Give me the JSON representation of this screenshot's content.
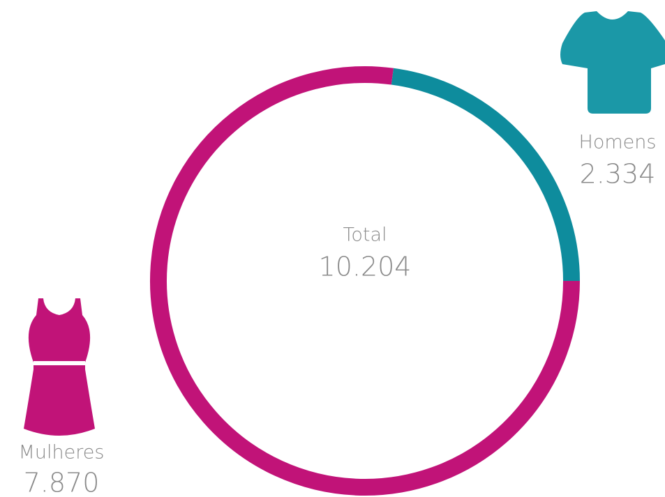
{
  "chart_data": {
    "type": "donut",
    "categories": [
      "Homens",
      "Mulheres"
    ],
    "values": [
      2334,
      7870
    ],
    "value_labels": [
      "2.334",
      "7.870"
    ],
    "colors": [
      "#0e8c9d",
      "#c11378"
    ],
    "center_label": "Total",
    "total": 10204,
    "total_label": "10.204"
  }
}
